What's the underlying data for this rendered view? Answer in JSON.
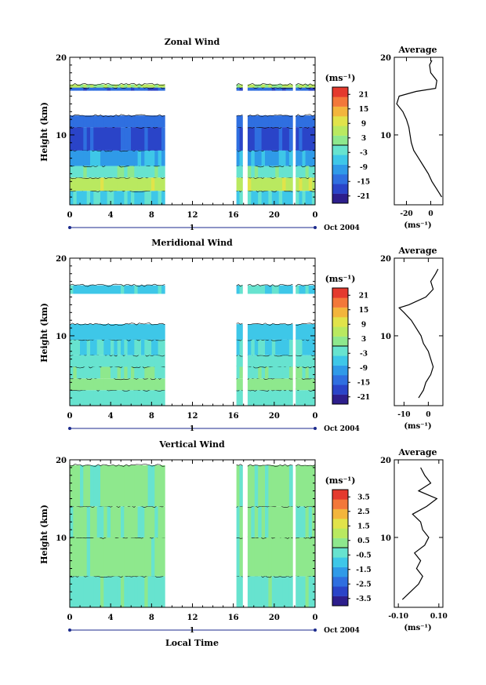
{
  "figure": {
    "xlabel_bottom": "Local Time",
    "cbar_unit": "(ms⁻¹)",
    "avg_unit": "(ms⁻¹)",
    "date_label": "Oct 2004",
    "day_marker": "1"
  },
  "chart_data": [
    {
      "type": "heatmap",
      "title": "Zonal Wind",
      "ylabel": "Height (km)",
      "xlabel": "",
      "x_ticks": [
        "0",
        "4",
        "8",
        "12",
        "16",
        "20",
        "0"
      ],
      "y_ticks": [
        "20",
        "10"
      ],
      "xlim": [
        0,
        24
      ],
      "ylim": [
        1,
        20
      ],
      "data_gap_hours": [
        [
          9.3,
          16.3
        ],
        [
          16.9,
          17.4
        ],
        [
          21.8,
          22.1
        ]
      ],
      "colorbar": {
        "ticks": [
          "21",
          "15",
          "9",
          "3",
          "-3",
          "-9",
          "-15",
          "-21"
        ],
        "range": [
          -24,
          24
        ]
      },
      "bands": [
        {
          "bottom_km": 1.0,
          "top_km": 2.8,
          "value": -4
        },
        {
          "bottom_km": 2.8,
          "top_km": 4.5,
          "value": 7
        },
        {
          "bottom_km": 4.5,
          "top_km": 6.0,
          "value": -1
        },
        {
          "bottom_km": 6.0,
          "top_km": 8.0,
          "value": -8
        },
        {
          "bottom_km": 8.0,
          "top_km": 11.0,
          "value": -17
        },
        {
          "bottom_km": 11.0,
          "top_km": 12.5,
          "value": -14
        },
        {
          "bottom_km": 15.7,
          "top_km": 16.1,
          "value": -15
        },
        {
          "bottom_km": 16.1,
          "top_km": 16.5,
          "value": 4
        }
      ],
      "average": {
        "title": "Average",
        "x_ticks": [
          "-20",
          "0"
        ],
        "xlim": [
          -30,
          10
        ],
        "y_ticks": [
          "20",
          "10"
        ],
        "profile": [
          [
            2,
            9
          ],
          [
            3,
            5
          ],
          [
            4,
            1
          ],
          [
            5,
            -2
          ],
          [
            6,
            -6
          ],
          [
            7,
            -10
          ],
          [
            8,
            -14
          ],
          [
            9,
            -16
          ],
          [
            10,
            -17
          ],
          [
            11,
            -18
          ],
          [
            12,
            -20
          ],
          [
            13,
            -23
          ],
          [
            14,
            -28
          ],
          [
            15,
            -26
          ],
          [
            15.6,
            -12
          ],
          [
            16,
            4
          ],
          [
            17,
            5
          ],
          [
            18,
            0
          ],
          [
            19,
            -1
          ],
          [
            19.6,
            1
          ]
        ]
      }
    },
    {
      "type": "heatmap",
      "title": "Meridional Wind",
      "ylabel": "Height (km)",
      "xlabel": "",
      "x_ticks": [
        "0",
        "4",
        "8",
        "12",
        "16",
        "20",
        "0"
      ],
      "y_ticks": [
        "20",
        "10"
      ],
      "xlim": [
        0,
        24
      ],
      "ylim": [
        1,
        20
      ],
      "data_gap_hours": [
        [
          9.3,
          16.3
        ],
        [
          16.9,
          17.4
        ],
        [
          21.8,
          22.1
        ]
      ],
      "colorbar": {
        "ticks": [
          "21",
          "15",
          "9",
          "3",
          "-3",
          "-9",
          "-15",
          "-21"
        ],
        "range": [
          -24,
          24
        ]
      },
      "bands": [
        {
          "bottom_km": 1.0,
          "top_km": 3.0,
          "value": -2
        },
        {
          "bottom_km": 3.0,
          "top_km": 4.5,
          "value": 2
        },
        {
          "bottom_km": 4.5,
          "top_km": 6.0,
          "value": 0
        },
        {
          "bottom_km": 6.0,
          "top_km": 7.5,
          "value": -2
        },
        {
          "bottom_km": 7.5,
          "top_km": 9.5,
          "value": -4
        },
        {
          "bottom_km": 9.5,
          "top_km": 11.5,
          "value": -6
        },
        {
          "bottom_km": 15.4,
          "top_km": 16.5,
          "value": -5
        }
      ],
      "average": {
        "title": "Average",
        "x_ticks": [
          "-10",
          "0"
        ],
        "xlim": [
          -14,
          6
        ],
        "y_ticks": [
          "20",
          "10"
        ],
        "profile": [
          [
            2,
            -4
          ],
          [
            3,
            -2
          ],
          [
            4,
            -1
          ],
          [
            5,
            1
          ],
          [
            6,
            2
          ],
          [
            7,
            1
          ],
          [
            8,
            0
          ],
          [
            9,
            -2
          ],
          [
            10,
            -3
          ],
          [
            11,
            -5
          ],
          [
            12,
            -7
          ],
          [
            13,
            -10
          ],
          [
            13.6,
            -12
          ],
          [
            14,
            -8
          ],
          [
            15,
            -1
          ],
          [
            16,
            2
          ],
          [
            17,
            1
          ],
          [
            18,
            3
          ],
          [
            18.6,
            4
          ]
        ]
      }
    },
    {
      "type": "heatmap",
      "title": "Vertical Wind",
      "ylabel": "Height (km)",
      "xlabel": "Local Time",
      "x_ticks": [
        "0",
        "4",
        "8",
        "12",
        "16",
        "20",
        "0"
      ],
      "y_ticks": [
        "20",
        "10"
      ],
      "xlim": [
        0,
        24
      ],
      "ylim": [
        1,
        20
      ],
      "data_gap_hours": [
        [
          9.3,
          16.3
        ],
        [
          16.9,
          17.4
        ],
        [
          21.8,
          22.1
        ]
      ],
      "colorbar": {
        "ticks": [
          "3.5",
          "2.5",
          "1.5",
          "0.5",
          "-0.5",
          "-1.5",
          "-2.5",
          "-3.5"
        ],
        "range": [
          -4,
          4
        ]
      },
      "bands": [
        {
          "bottom_km": 1.0,
          "top_km": 5.0,
          "value": -0.2
        },
        {
          "bottom_km": 5.0,
          "top_km": 10.0,
          "value": 0.3
        },
        {
          "bottom_km": 10.0,
          "top_km": 14.0,
          "value": 0.1
        },
        {
          "bottom_km": 14.0,
          "top_km": 19.3,
          "value": 0.2
        }
      ],
      "average": {
        "title": "Average",
        "x_ticks": [
          "-0.10",
          "0.10"
        ],
        "xlim": [
          -0.12,
          0.12
        ],
        "y_ticks": [
          "20",
          "10"
        ],
        "profile": [
          [
            2,
            -0.08
          ],
          [
            3,
            -0.04
          ],
          [
            4,
            0.0
          ],
          [
            5,
            0.02
          ],
          [
            6,
            -0.01
          ],
          [
            7,
            0.01
          ],
          [
            8,
            -0.02
          ],
          [
            9,
            0.03
          ],
          [
            10,
            0.05
          ],
          [
            11,
            0.02
          ],
          [
            12,
            0.01
          ],
          [
            13,
            -0.03
          ],
          [
            14,
            0.04
          ],
          [
            15,
            0.09
          ],
          [
            16,
            0.0
          ],
          [
            17,
            0.06
          ],
          [
            18,
            0.03
          ],
          [
            19,
            0.01
          ]
        ]
      }
    }
  ]
}
